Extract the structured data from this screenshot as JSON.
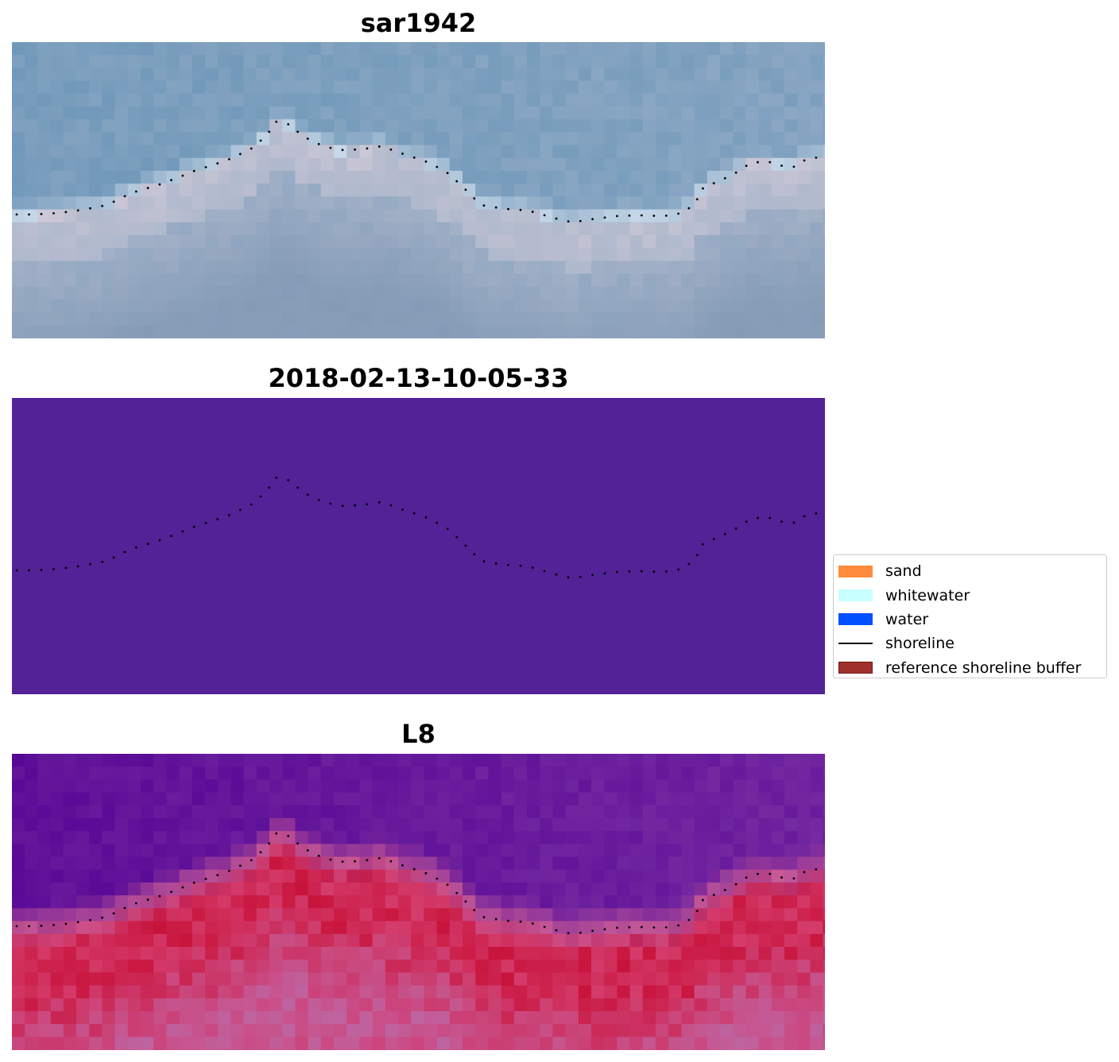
{
  "panels": [
    {
      "title": "sar1942",
      "image": "true-color satellite image"
    },
    {
      "title": "2018-02-13-10-05-33",
      "image": "classified image"
    },
    {
      "title": "L8",
      "image": "MNDWI index image"
    }
  ],
  "colors": {
    "classified_background": "#532296",
    "shoreline": "#000000"
  },
  "legend": {
    "items": [
      {
        "label": "sand",
        "color": "#ff8c3c",
        "kind": "patch"
      },
      {
        "label": "whitewater",
        "color": "#c8ffff",
        "kind": "patch"
      },
      {
        "label": "water",
        "color": "#0050ff",
        "kind": "patch"
      },
      {
        "label": "shoreline",
        "color": "#000000",
        "kind": "line"
      },
      {
        "label": "reference shoreline buffer",
        "color": "#a0302c",
        "kind": "patch"
      }
    ]
  }
}
